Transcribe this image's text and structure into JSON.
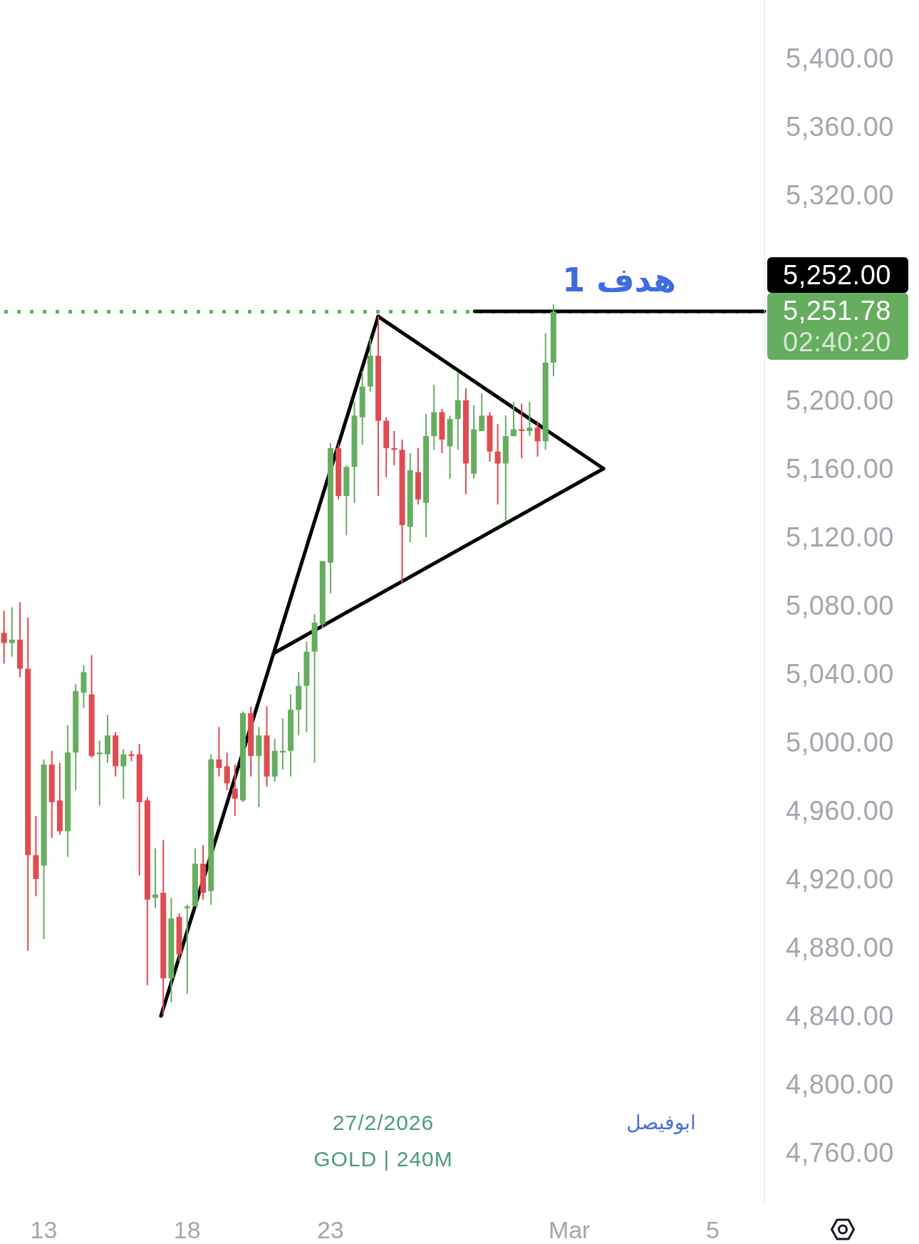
{
  "chart_data": {
    "type": "candlestick",
    "categories": [
      null,
      null,
      null,
      null,
      null,
      "13",
      null,
      null,
      null,
      null,
      null,
      null,
      null,
      null,
      null,
      null,
      null,
      null,
      null,
      null,
      null,
      null,
      null,
      "18",
      null,
      null,
      null,
      null,
      null,
      null,
      null,
      null,
      null,
      null,
      null,
      null,
      null,
      null,
      null,
      null,
      null,
      "23",
      null,
      null,
      null,
      null,
      null,
      null,
      null,
      null,
      null,
      null,
      null,
      null,
      null,
      null,
      null,
      null,
      null,
      null,
      null,
      null,
      null,
      null,
      null,
      null,
      null,
      null,
      null,
      null,
      null,
      "Mar",
      null,
      null,
      null,
      null,
      null,
      null,
      null,
      null,
      null,
      null,
      null,
      null,
      null,
      null,
      null,
      null,
      null,
      "5",
      null,
      null,
      null,
      null,
      null,
      null
    ],
    "ohlc": [
      [
        5064,
        5077,
        5046,
        5058
      ],
      [
        5058,
        5079,
        5050,
        5060
      ],
      [
        5060,
        5082,
        5038,
        5043
      ],
      [
        5043,
        5073,
        4878,
        4934
      ],
      [
        4934,
        4957,
        4910,
        4920
      ],
      [
        4928,
        4990,
        4885,
        4987
      ],
      [
        4987,
        4995,
        4944,
        4965
      ],
      [
        4966,
        4988,
        4946,
        4948
      ],
      [
        4948,
        5010,
        4933,
        4994
      ],
      [
        4994,
        5034,
        4972,
        5030
      ],
      [
        5029,
        5045,
        5020,
        5041
      ],
      [
        5028,
        5051,
        4991,
        4992
      ],
      [
        4993,
        5001,
        4963,
        4994
      ],
      [
        4993,
        5016,
        4988,
        5004
      ],
      [
        5004,
        5006,
        4980,
        4986
      ],
      [
        4986,
        4996,
        4967,
        4993
      ],
      [
        4993,
        4995,
        4989,
        4992
      ],
      [
        4993,
        4999,
        4922,
        4965
      ],
      [
        4966,
        4968,
        4858,
        4908
      ],
      [
        4909,
        4938,
        4903,
        4911
      ],
      [
        4912,
        4943,
        4840,
        4862
      ],
      [
        4862,
        4909,
        4848,
        4897
      ],
      [
        4898,
        4900,
        4872,
        4876
      ],
      [
        4903,
        4905,
        4853,
        4904
      ],
      [
        4904,
        4938,
        4904,
        4929
      ],
      [
        4929,
        4940,
        4908,
        4912
      ],
      [
        4913,
        4993,
        4905,
        4990
      ],
      [
        4990,
        5009,
        4980,
        4985
      ],
      [
        4986,
        4994,
        4972,
        4976
      ],
      [
        4973,
        4987,
        4957,
        4967
      ],
      [
        4966,
        5018,
        4965,
        5017
      ],
      [
        5017,
        5021,
        4980,
        4992
      ],
      [
        4992,
        5009,
        4962,
        5004
      ],
      [
        5004,
        5021,
        4974,
        4980
      ],
      [
        4980,
        5002,
        4977,
        4995
      ],
      [
        4994,
        5014,
        4984,
        4995
      ],
      [
        4995,
        5028,
        4980,
        5019
      ],
      [
        5019,
        5041,
        5004,
        5033
      ],
      [
        5033,
        5059,
        5006,
        5053
      ],
      [
        5053,
        5075,
        4988,
        5070
      ],
      [
        5069,
        5106,
        5067,
        5106
      ],
      [
        5105,
        5175,
        5087,
        5172
      ],
      [
        5172,
        5174,
        5142,
        5144
      ],
      [
        5144,
        5162,
        5121,
        5161
      ],
      [
        5161,
        5199,
        5140,
        5191
      ],
      [
        5190,
        5217,
        5174,
        5208
      ],
      [
        5208,
        5236,
        5205,
        5226
      ],
      [
        5226,
        5249,
        5144,
        5188
      ],
      [
        5188,
        5190,
        5155,
        5172
      ],
      [
        5172,
        5182,
        5162,
        5171
      ],
      [
        5171,
        5177,
        5093,
        5127
      ],
      [
        5126,
        5169,
        5117,
        5159
      ],
      [
        5158,
        5172,
        5139,
        5142
      ],
      [
        5140,
        5192,
        5120,
        5179
      ],
      [
        5179,
        5209,
        5171,
        5193
      ],
      [
        5193,
        5195,
        5169,
        5177
      ],
      [
        5173,
        5191,
        5154,
        5189
      ],
      [
        5189,
        5216,
        5171,
        5200
      ],
      [
        5200,
        5207,
        5145,
        5163
      ],
      [
        5157,
        5197,
        5154,
        5183
      ],
      [
        5182,
        5204,
        5182,
        5191
      ],
      [
        5191,
        5193,
        5164,
        5170
      ],
      [
        5170,
        5186,
        5139,
        5163
      ],
      [
        5163,
        5191,
        5129,
        5179
      ],
      [
        5179,
        5199,
        5179,
        5183
      ],
      [
        5183,
        5198,
        5166,
        5182
      ],
      [
        5182,
        5199,
        5179,
        5184
      ],
      [
        5184,
        5188,
        5167,
        5176
      ],
      [
        5176,
        5239,
        5171,
        5222
      ],
      [
        5222,
        5256,
        5214,
        5251.78
      ],
      null,
      null,
      null,
      null,
      null,
      null,
      null,
      null,
      null,
      null,
      null,
      null,
      null,
      null,
      null,
      null,
      null,
      null,
      null,
      null,
      null,
      null,
      null,
      null,
      null,
      null
    ],
    "colors": [
      "#df4b51",
      "#66ad5f",
      "#df4b51",
      "#df4b51",
      "#df4b51",
      "#66ad5f",
      "#df4b51",
      "#df4b51",
      "#66ad5f",
      "#66ad5f",
      "#66ad5f",
      "#df4b51",
      "#66ad5f",
      "#66ad5f",
      "#df4b51",
      "#66ad5f",
      "#df4b51",
      "#df4b51",
      "#df4b51",
      "#66ad5f",
      "#df4b51",
      "#66ad5f",
      "#df4b51",
      "#66ad5f",
      "#66ad5f",
      "#df4b51",
      "#66ad5f",
      "#df4b51",
      "#df4b51",
      "#df4b51",
      "#66ad5f",
      "#df4b51",
      "#66ad5f",
      "#df4b51",
      "#66ad5f",
      "#66ad5f",
      "#66ad5f",
      "#66ad5f",
      "#66ad5f",
      "#66ad5f",
      "#66ad5f",
      "#66ad5f",
      "#df4b51",
      "#66ad5f",
      "#66ad5f",
      "#66ad5f",
      "#66ad5f",
      "#df4b51",
      "#df4b51",
      "#df4b51",
      "#df4b51",
      "#66ad5f",
      "#df4b51",
      "#66ad5f",
      "#66ad5f",
      "#df4b51",
      "#66ad5f",
      "#66ad5f",
      "#df4b51",
      "#66ad5f",
      "#66ad5f",
      "#df4b51",
      "#df4b51",
      "#66ad5f",
      "#66ad5f",
      "#df4b51",
      "#66ad5f",
      "#df4b51",
      "#66ad5f",
      "#66ad5f",
      null,
      null,
      null,
      null,
      null,
      null,
      null,
      null,
      null,
      null,
      null,
      null,
      null,
      null,
      null,
      null,
      null,
      null,
      null,
      null,
      null,
      null,
      null,
      null,
      null,
      null
    ],
    "series": [
      {
        "type": "line",
        "color": "#000000",
        "values": [
          null,
          null,
          null,
          null,
          null,
          null,
          null,
          null,
          null,
          null,
          null,
          null,
          null,
          null,
          null,
          null,
          null,
          null,
          null,
          null,
          4840,
          null,
          null,
          null,
          null,
          null,
          null,
          null,
          null,
          null,
          null,
          null,
          null,
          null,
          null,
          null,
          null,
          null,
          null,
          null,
          null,
          null,
          null,
          null,
          null,
          null,
          null,
          5249,
          null,
          null,
          null,
          null,
          null,
          null,
          null,
          null,
          null,
          null,
          null,
          null,
          null,
          null,
          null,
          null,
          null,
          null,
          null,
          null,
          null,
          null,
          null,
          null,
          null,
          null,
          null,
          null,
          null,
          null,
          null,
          null,
          null,
          null,
          null,
          null,
          null,
          null,
          null,
          null,
          null,
          null,
          null,
          null,
          null,
          null,
          null,
          null
        ]
      },
      {
        "type": "line",
        "color": "#000000",
        "values": [
          null,
          null,
          null,
          null,
          null,
          null,
          null,
          null,
          null,
          null,
          null,
          null,
          null,
          null,
          null,
          null,
          null,
          null,
          null,
          null,
          null,
          null,
          null,
          null,
          null,
          null,
          null,
          null,
          null,
          null,
          null,
          null,
          null,
          null,
          null,
          null,
          null,
          null,
          null,
          null,
          null,
          null,
          null,
          null,
          null,
          null,
          null,
          5249,
          null,
          null,
          null,
          null,
          null,
          null,
          null,
          null,
          null,
          null,
          null,
          null,
          null,
          null,
          null,
          null,
          null,
          null,
          null,
          null,
          null,
          null,
          null,
          null,
          null,
          null,
          null,
          5160,
          null,
          null,
          null,
          null,
          null,
          null,
          null,
          null,
          null,
          null,
          null,
          null,
          null,
          null,
          null,
          null,
          null,
          null,
          null,
          null
        ]
      },
      {
        "type": "line",
        "color": "#000000",
        "values": [
          null,
          null,
          null,
          null,
          null,
          null,
          null,
          null,
          null,
          null,
          null,
          null,
          null,
          null,
          null,
          null,
          null,
          null,
          null,
          null,
          null,
          null,
          null,
          null,
          null,
          null,
          null,
          null,
          null,
          null,
          null,
          null,
          null,
          null,
          5052,
          null,
          null,
          null,
          null,
          null,
          null,
          null,
          null,
          null,
          null,
          null,
          null,
          null,
          null,
          null,
          null,
          null,
          null,
          null,
          null,
          null,
          null,
          null,
          null,
          null,
          null,
          null,
          null,
          null,
          null,
          null,
          null,
          null,
          null,
          null,
          null,
          null,
          null,
          null,
          null,
          5160,
          null,
          null,
          null,
          null,
          null,
          null,
          null,
          null,
          null,
          null,
          null,
          null,
          null,
          null,
          null,
          null,
          null,
          null,
          null,
          null
        ]
      },
      {
        "type": "line",
        "color": "#000000",
        "values": [
          null,
          null,
          null,
          null,
          null,
          null,
          null,
          null,
          null,
          null,
          null,
          null,
          null,
          null,
          null,
          null,
          null,
          null,
          null,
          null,
          null,
          null,
          null,
          null,
          null,
          null,
          null,
          null,
          null,
          null,
          null,
          null,
          null,
          null,
          null,
          null,
          null,
          null,
          null,
          null,
          null,
          null,
          null,
          null,
          null,
          null,
          null,
          null,
          null,
          null,
          null,
          null,
          null,
          null,
          null,
          null,
          null,
          null,
          null,
          5252,
          null,
          null,
          null,
          null,
          null,
          null,
          null,
          null,
          null,
          null,
          null,
          null,
          null,
          null,
          null,
          null,
          null,
          null,
          null,
          null,
          null,
          null,
          null,
          null,
          null,
          null,
          null,
          null,
          null,
          null,
          null,
          null,
          null,
          null,
          null,
          5252
        ]
      }
    ],
    "ylim": [
      4730,
      5434
    ],
    "yticks": [
      {
        "value": 4760,
        "label": "4,760.00"
      },
      {
        "value": 4800,
        "label": "4,800.00"
      },
      {
        "value": 4840,
        "label": "4,840.00"
      },
      {
        "value": 4880,
        "label": "4,880.00"
      },
      {
        "value": 4920,
        "label": "4,920.00"
      },
      {
        "value": 4960,
        "label": "4,960.00"
      },
      {
        "value": 5000,
        "label": "5,000.00"
      },
      {
        "value": 5040,
        "label": "5,040.00"
      },
      {
        "value": 5080,
        "label": "5,080.00"
      },
      {
        "value": 5120,
        "label": "5,120.00"
      },
      {
        "value": 5160,
        "label": "5,160.00"
      },
      {
        "value": 5200,
        "label": "5,200.00"
      },
      {
        "value": 5320,
        "label": "5,320.00"
      },
      {
        "value": 5360,
        "label": "5,360.00"
      },
      {
        "value": 5400,
        "label": "5,400.00"
      }
    ],
    "ref_lines": [
      {
        "axis": "y",
        "value": 5251.78,
        "label": "5,251.78",
        "color": "#66ad5f",
        "line_style": "dotted"
      }
    ],
    "annotations": [
      "هدف 1",
      "5,252.00",
      "02:40:20",
      "27/2/2026",
      "GOLD | 240M",
      "ابوفيصل"
    ]
  }
}
